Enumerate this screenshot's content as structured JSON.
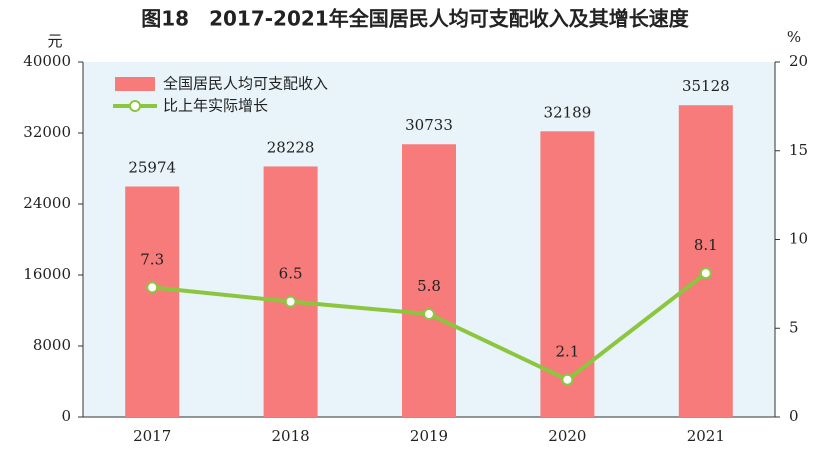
{
  "chart_data": {
    "type": "bar",
    "title": "图18　2017-2021年全国居民人均可支配收入及其增长速度",
    "y_unit": "元",
    "y2_unit": "%",
    "categories": [
      "2017",
      "2018",
      "2019",
      "2020",
      "2021"
    ],
    "series": [
      {
        "name": "全国居民人均可支配收入",
        "type": "bar",
        "color": "#f77b7b",
        "values": [
          25974,
          28228,
          30733,
          32189,
          35128
        ]
      },
      {
        "name": "比上年实际增长",
        "type": "line",
        "axis": "y2",
        "color": "#8cc63f",
        "values": [
          7.3,
          6.5,
          5.8,
          2.1,
          8.1
        ]
      }
    ],
    "ylim": [
      0,
      40000
    ],
    "yticks": [
      0,
      8000,
      16000,
      24000,
      32000,
      40000
    ],
    "y2lim": [
      0,
      20
    ],
    "y2ticks": [
      0,
      5,
      10,
      15,
      20
    ],
    "grid": false,
    "legend": "top-left"
  }
}
